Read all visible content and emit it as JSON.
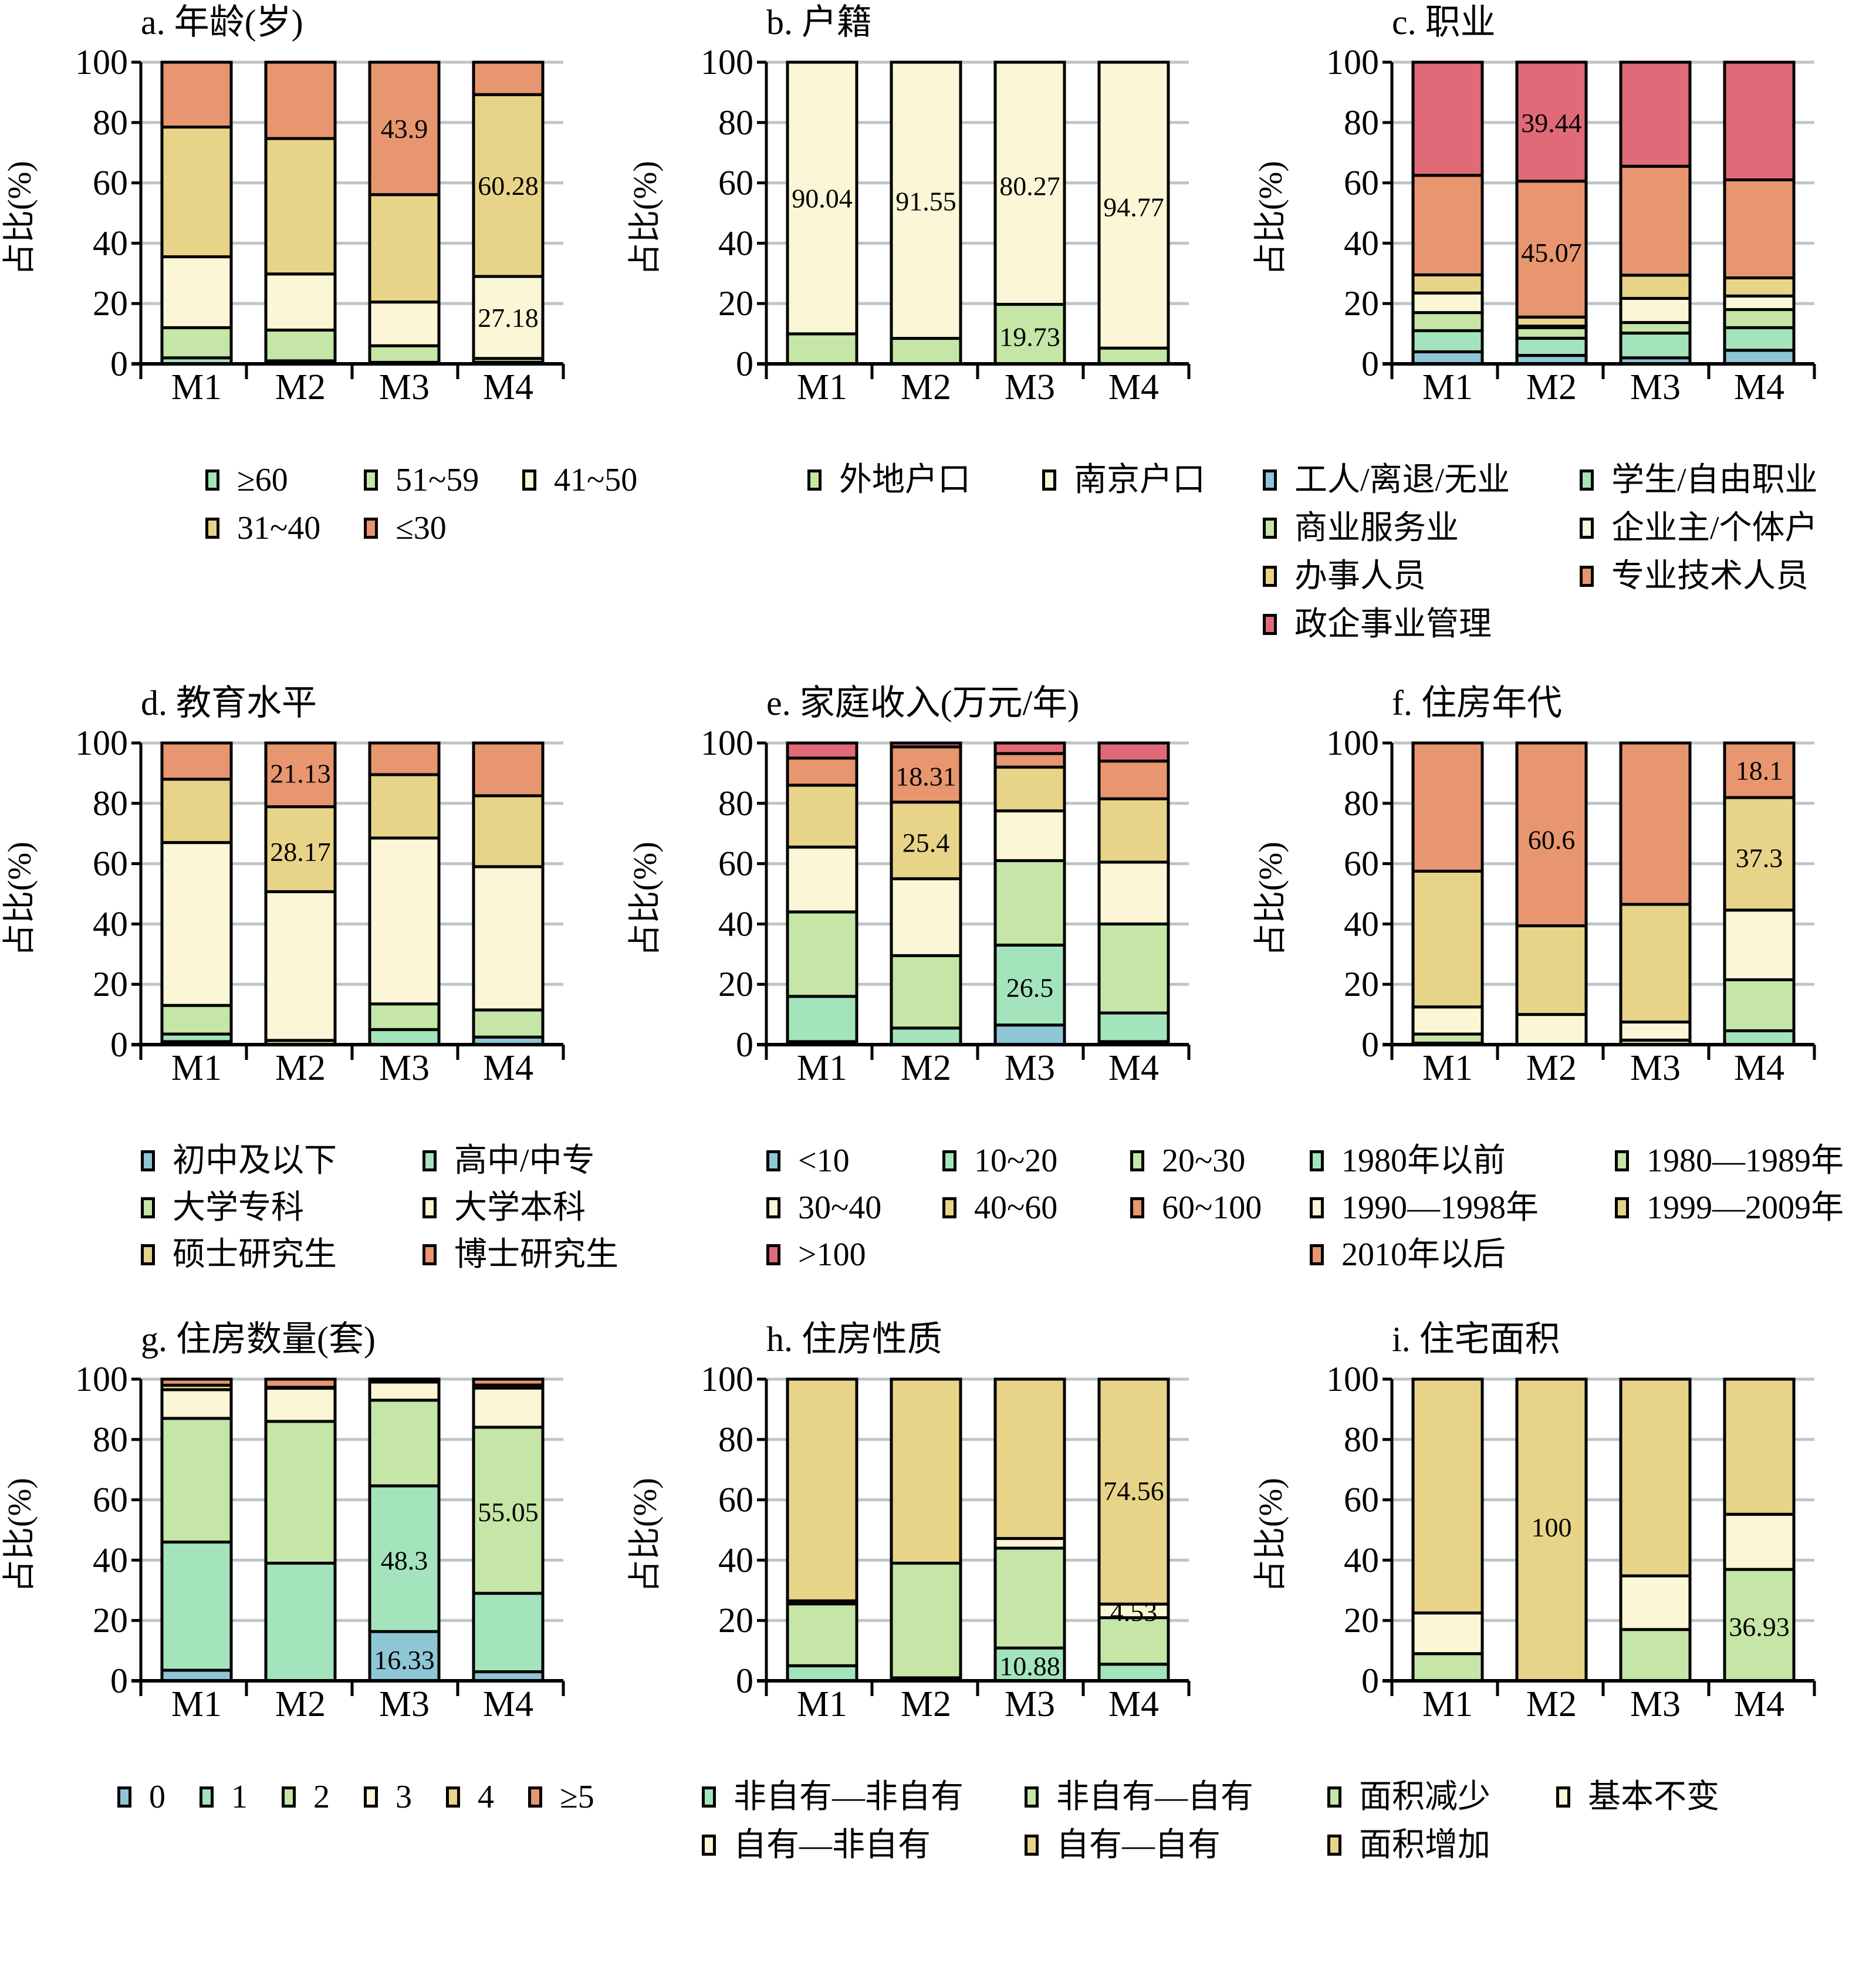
{
  "chart_data": [
    {
      "id": "a",
      "type": "bar",
      "stacked": true,
      "title": "a. 年龄(岁)",
      "ylabel": "占比(%)",
      "xlabel": "",
      "ylim": [
        0,
        100
      ],
      "yticks": [
        "0",
        "20",
        "40",
        "60",
        "80",
        "100"
      ],
      "categories": [
        "M1",
        "M2",
        "M3",
        "M4"
      ],
      "grid": true,
      "legend_position": "bottom",
      "series": [
        {
          "name": "≥60",
          "color": "#a4e4bc",
          "values": [
            2.0,
            1.0,
            0.5,
            0.5
          ]
        },
        {
          "name": "51~59",
          "color": "#c5e6a6",
          "values": [
            10.0,
            10.2,
            5.5,
            1.3
          ]
        },
        {
          "name": "41~50",
          "color": "#faf6d6",
          "values": [
            23.5,
            18.6,
            14.5,
            27.18
          ]
        },
        {
          "name": "31~40",
          "color": "#e8d488",
          "values": [
            43.0,
            44.9,
            35.6,
            60.28
          ]
        },
        {
          "name": "≤30",
          "color": "#e8966f",
          "values": [
            21.5,
            25.3,
            43.9,
            10.74
          ]
        }
      ],
      "data_labels": [
        {
          "text": "43.9",
          "category": "M3",
          "series": "≤30"
        },
        {
          "text": "60.28",
          "category": "M4",
          "series": "31~40"
        },
        {
          "text": "27.18",
          "category": "M4",
          "series": "41~50"
        }
      ]
    },
    {
      "id": "b",
      "type": "bar",
      "stacked": true,
      "title": "b. 户籍",
      "ylabel": "占比(%)",
      "xlabel": "",
      "ylim": [
        0,
        100
      ],
      "yticks": [
        "0",
        "20",
        "40",
        "60",
        "80",
        "100"
      ],
      "categories": [
        "M1",
        "M2",
        "M3",
        "M4"
      ],
      "grid": true,
      "legend_position": "bottom",
      "series": [
        {
          "name": "外地户口",
          "color": "#c5e6a6",
          "values": [
            9.96,
            8.45,
            19.73,
            5.23
          ]
        },
        {
          "name": "南京户口",
          "color": "#faf6d6",
          "values": [
            90.04,
            91.55,
            80.27,
            94.77
          ]
        }
      ],
      "data_labels": [
        {
          "text": "90.04",
          "category": "M1",
          "series": "南京户口",
          "at": 55
        },
        {
          "text": "91.55",
          "category": "M2",
          "series": "南京户口",
          "at": 54
        },
        {
          "text": "80.27",
          "category": "M3",
          "series": "南京户口",
          "at": 59
        },
        {
          "text": "94.77",
          "category": "M4",
          "series": "南京户口",
          "at": 52
        },
        {
          "text": "19.73",
          "category": "M3",
          "series": "外地户口",
          "at": 9
        }
      ]
    },
    {
      "id": "c",
      "type": "bar",
      "stacked": true,
      "title": "c. 职业",
      "ylabel": "占比(%)",
      "xlabel": "",
      "ylim": [
        0,
        100
      ],
      "yticks": [
        "0",
        "20",
        "40",
        "60",
        "80",
        "100"
      ],
      "categories": [
        "M1",
        "M2",
        "M3",
        "M4"
      ],
      "grid": true,
      "legend_position": "bottom",
      "series": [
        {
          "name": "工人/离退/无业",
          "color": "#8fc6d6",
          "values": [
            4.0,
            2.8,
            2.0,
            4.5
          ]
        },
        {
          "name": "学生/自由职业",
          "color": "#a4e4bc",
          "values": [
            7.0,
            5.7,
            8.2,
            7.5
          ]
        },
        {
          "name": "商业服务业",
          "color": "#c5e6a6",
          "values": [
            6.0,
            3.5,
            3.5,
            6.0
          ]
        },
        {
          "name": "企业主/个体户",
          "color": "#faf6d6",
          "values": [
            6.5,
            0.5,
            8.0,
            4.5
          ]
        },
        {
          "name": "办事人员",
          "color": "#e8d488",
          "values": [
            6.0,
            3.0,
            7.7,
            6.0
          ]
        },
        {
          "name": "专业技术人员",
          "color": "#e8966f",
          "values": [
            33.0,
            45.07,
            36.1,
            32.5
          ]
        },
        {
          "name": "政企事业管理",
          "color": "#e06a77",
          "values": [
            37.5,
            39.44,
            34.5,
            39.0
          ]
        }
      ],
      "data_labels": [
        {
          "text": "39.44",
          "category": "M2",
          "series": "政企事业管理",
          "at": 80
        },
        {
          "text": "45.07",
          "category": "M2",
          "series": "专业技术人员",
          "at": 37
        }
      ]
    },
    {
      "id": "d",
      "type": "bar",
      "stacked": true,
      "title": "d. 教育水平",
      "ylabel": "占比(%)",
      "xlabel": "",
      "ylim": [
        0,
        100
      ],
      "yticks": [
        "0",
        "20",
        "40",
        "60",
        "80",
        "100"
      ],
      "categories": [
        "M1",
        "M2",
        "M3",
        "M4"
      ],
      "grid": true,
      "legend_position": "bottom",
      "series": [
        {
          "name": "初中及以下",
          "color": "#8fc6d6",
          "values": [
            1.0,
            0.0,
            0.0,
            2.5
          ]
        },
        {
          "name": "高中/中专",
          "color": "#a4e4bc",
          "values": [
            2.5,
            0.0,
            5.0,
            0.0
          ]
        },
        {
          "name": "大学专科",
          "color": "#c5e6a6",
          "values": [
            9.5,
            1.4,
            8.5,
            9.0
          ]
        },
        {
          "name": "大学本科",
          "color": "#faf6d6",
          "values": [
            54.0,
            49.3,
            55.0,
            47.5
          ]
        },
        {
          "name": "硕士研究生",
          "color": "#e8d488",
          "values": [
            21.0,
            28.17,
            21.0,
            23.5
          ]
        },
        {
          "name": "博士研究生",
          "color": "#e8966f",
          "values": [
            12.0,
            21.13,
            10.5,
            17.5
          ]
        }
      ],
      "data_labels": [
        {
          "text": "21.13",
          "category": "M2",
          "series": "博士研究生",
          "at": 90
        },
        {
          "text": "28.17",
          "category": "M2",
          "series": "硕士研究生",
          "at": 64
        }
      ]
    },
    {
      "id": "e",
      "type": "bar",
      "stacked": true,
      "title": "e. 家庭收入(万元/年)",
      "ylabel": "占比(%)",
      "xlabel": "",
      "ylim": [
        0,
        100
      ],
      "yticks": [
        "0",
        "20",
        "40",
        "60",
        "80",
        "100"
      ],
      "categories": [
        "M1",
        "M2",
        "M3",
        "M4"
      ],
      "grid": true,
      "legend_position": "bottom",
      "series": [
        {
          "name": "<10",
          "color": "#8fc6d6",
          "values": [
            1.0,
            0.0,
            6.5,
            1.0
          ]
        },
        {
          "name": "10~20",
          "color": "#a4e4bc",
          "values": [
            15.0,
            5.5,
            26.5,
            9.5
          ]
        },
        {
          "name": "20~30",
          "color": "#c5e6a6",
          "values": [
            28.0,
            24.0,
            28.0,
            29.5
          ]
        },
        {
          "name": "30~40",
          "color": "#faf6d6",
          "values": [
            21.5,
            25.5,
            16.5,
            20.5
          ]
        },
        {
          "name": "40~60",
          "color": "#e8d488",
          "values": [
            20.5,
            25.4,
            14.5,
            21.0
          ]
        },
        {
          "name": "60~100",
          "color": "#e8966f",
          "values": [
            9.0,
            18.31,
            4.5,
            12.5
          ]
        },
        {
          "name": ">100",
          "color": "#e06a77",
          "values": [
            5.0,
            1.29,
            3.5,
            6.0
          ]
        }
      ],
      "data_labels": [
        {
          "text": "18.31",
          "category": "M2",
          "series": "60~100",
          "at": 89
        },
        {
          "text": "25.4",
          "category": "M2",
          "series": "40~60",
          "at": 67
        },
        {
          "text": "26.5",
          "category": "M3",
          "series": "10~20",
          "at": 19
        }
      ]
    },
    {
      "id": "f",
      "type": "bar",
      "stacked": true,
      "title": "f. 住房年代",
      "ylabel": "占比(%)",
      "xlabel": "",
      "ylim": [
        0,
        100
      ],
      "yticks": [
        "0",
        "20",
        "40",
        "60",
        "80",
        "100"
      ],
      "categories": [
        "M1",
        "M2",
        "M3",
        "M4"
      ],
      "grid": true,
      "legend_position": "bottom",
      "series": [
        {
          "name": "1980年以前",
          "color": "#a4e4bc",
          "values": [
            0.5,
            0.0,
            0.0,
            4.6
          ]
        },
        {
          "name": "1980—1989年",
          "color": "#c5e6a6",
          "values": [
            3.0,
            0.0,
            1.5,
            16.9
          ]
        },
        {
          "name": "1990—1998年",
          "color": "#faf6d6",
          "values": [
            9.0,
            10.0,
            6.0,
            23.1
          ]
        },
        {
          "name": "1999—2009年",
          "color": "#e8d488",
          "values": [
            45.0,
            29.4,
            39.0,
            37.3
          ]
        },
        {
          "name": "2010年以后",
          "color": "#e8966f",
          "values": [
            42.5,
            60.6,
            53.5,
            18.1
          ]
        }
      ],
      "data_labels": [
        {
          "text": "60.6",
          "category": "M2",
          "series": "2010年以后",
          "at": 68
        },
        {
          "text": "18.1",
          "category": "M4",
          "series": "2010年以后",
          "at": 91
        },
        {
          "text": "37.3",
          "category": "M4",
          "series": "1999—2009年",
          "at": 62
        }
      ]
    },
    {
      "id": "g",
      "type": "bar",
      "stacked": true,
      "title": "g. 住房数量(套)",
      "ylabel": "占比(%)",
      "xlabel": "",
      "ylim": [
        0,
        100
      ],
      "yticks": [
        "0",
        "20",
        "40",
        "60",
        "80",
        "100"
      ],
      "categories": [
        "M1",
        "M2",
        "M3",
        "M4"
      ],
      "grid": true,
      "legend_position": "bottom",
      "series": [
        {
          "name": "0",
          "color": "#8fc6d6",
          "values": [
            3.5,
            0.0,
            16.33,
            3.0
          ]
        },
        {
          "name": "1",
          "color": "#a4e4bc",
          "values": [
            42.5,
            39.0,
            48.3,
            26.0
          ]
        },
        {
          "name": "2",
          "color": "#c5e6a6",
          "values": [
            41.0,
            47.0,
            28.4,
            55.05
          ]
        },
        {
          "name": "3",
          "color": "#faf6d6",
          "values": [
            9.5,
            11.0,
            6.0,
            13.0
          ]
        },
        {
          "name": "4",
          "color": "#e8d488",
          "values": [
            1.5,
            0.3,
            0.5,
            1.0
          ]
        },
        {
          "name": "≥5",
          "color": "#e8966f",
          "values": [
            2.0,
            2.7,
            0.5,
            1.95
          ]
        }
      ],
      "data_labels": [
        {
          "text": "16.33",
          "category": "M3",
          "series": "0",
          "at": 7
        },
        {
          "text": "48.3",
          "category": "M3",
          "series": "1",
          "at": 40
        },
        {
          "text": "55.05",
          "category": "M4",
          "series": "2",
          "at": 56
        }
      ]
    },
    {
      "id": "h",
      "type": "bar",
      "stacked": true,
      "title": "h. 住房性质",
      "ylabel": "占比(%)",
      "xlabel": "",
      "ylim": [
        0,
        100
      ],
      "yticks": [
        "0",
        "20",
        "40",
        "60",
        "80",
        "100"
      ],
      "categories": [
        "M1",
        "M2",
        "M3",
        "M4"
      ],
      "grid": true,
      "legend_position": "bottom",
      "series": [
        {
          "name": "非自有—非自有",
          "color": "#a4e4bc",
          "values": [
            5.0,
            1.0,
            10.88,
            5.5
          ]
        },
        {
          "name": "非自有—自有",
          "color": "#c5e6a6",
          "values": [
            20.5,
            38.0,
            33.1,
            15.41
          ]
        },
        {
          "name": "自有—非自有",
          "color": "#faf6d6",
          "values": [
            1.0,
            0.0,
            3.2,
            4.53
          ]
        },
        {
          "name": "自有—自有",
          "color": "#e8d488",
          "values": [
            73.5,
            61.0,
            52.82,
            74.56
          ]
        }
      ],
      "data_labels": [
        {
          "text": "10.88",
          "category": "M3",
          "series": "非自有—非自有",
          "at": 5
        },
        {
          "text": "74.56",
          "category": "M4",
          "series": "自有—自有",
          "at": 63
        },
        {
          "text": "4.53",
          "category": "M4",
          "series": "自有—非自有",
          "at": 23
        }
      ]
    },
    {
      "id": "i",
      "type": "bar",
      "stacked": true,
      "title": "i. 住宅面积",
      "ylabel": "占比(%)",
      "xlabel": "",
      "ylim": [
        0,
        100
      ],
      "yticks": [
        "0",
        "20",
        "40",
        "60",
        "80",
        "100"
      ],
      "categories": [
        "M1",
        "M2",
        "M3",
        "M4"
      ],
      "grid": true,
      "legend_position": "bottom",
      "series": [
        {
          "name": "面积减少",
          "color": "#c5e6a6",
          "values": [
            9.0,
            0.0,
            17.0,
            36.93
          ]
        },
        {
          "name": "基本不变",
          "color": "#faf6d6",
          "values": [
            13.5,
            0.0,
            17.8,
            18.27
          ]
        },
        {
          "name": "面积增加",
          "color": "#e8d488",
          "values": [
            77.5,
            100.0,
            65.2,
            44.8
          ]
        }
      ],
      "data_labels": [
        {
          "text": "100",
          "category": "M2",
          "series": "面积增加",
          "at": 51
        },
        {
          "text": "36.93",
          "category": "M4",
          "series": "面积减少",
          "at": 18
        }
      ]
    }
  ]
}
